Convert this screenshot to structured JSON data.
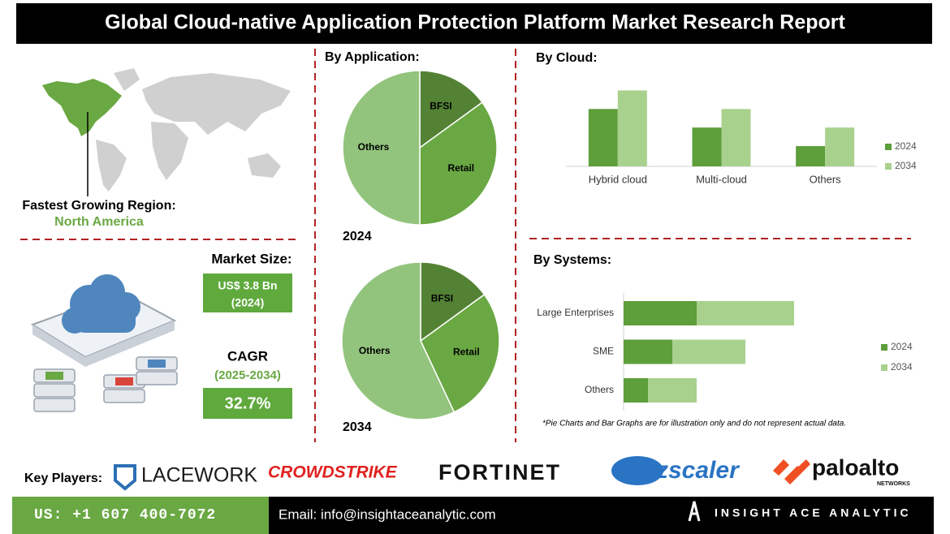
{
  "header": {
    "title": "Global Cloud-native Application Protection Platform Market Research Report"
  },
  "region": {
    "label": "Fastest Growing Region:",
    "value": "North America"
  },
  "market_size": {
    "label": "Market Size:",
    "value": "US$ 3.8 Bn",
    "year": "(2024)"
  },
  "cagr": {
    "label": "CAGR",
    "period": "(2025-2034)",
    "value": "32.7%"
  },
  "chart_data": [
    {
      "type": "pie",
      "title": "By Application:",
      "categories": [
        "BFSI",
        "Retail",
        "Others"
      ],
      "colors": [
        "#548235",
        "#6aa843",
        "#93c47d"
      ],
      "series": [
        {
          "name": "2024",
          "values": [
            15,
            35,
            50
          ]
        },
        {
          "name": "2034",
          "values": [
            15,
            28,
            57
          ]
        }
      ]
    },
    {
      "type": "bar",
      "title": "By  Cloud:",
      "categories": [
        "Hybrid cloud",
        "Multi-cloud",
        "Others"
      ],
      "series": [
        {
          "name": "2024",
          "color": "#5e9e3b",
          "values": [
            3.4,
            2.3,
            1.2
          ]
        },
        {
          "name": "2034",
          "color": "#a9d18e",
          "values": [
            4.5,
            3.4,
            2.3
          ]
        }
      ],
      "ylim": [
        0,
        5
      ]
    },
    {
      "type": "bar",
      "orientation": "horizontal",
      "stacked": true,
      "title": "By Systems:",
      "categories": [
        "Large Enterprises",
        "SME",
        "Others"
      ],
      "series": [
        {
          "name": "2024",
          "color": "#5e9e3b",
          "values": [
            3,
            2,
            1
          ]
        },
        {
          "name": "2034",
          "color": "#a9d18e",
          "values": [
            4,
            3,
            2
          ]
        }
      ],
      "xlim": [
        0,
        7
      ]
    }
  ],
  "note": "*Pie Charts and Bar Graphs are for illustration only and do not represent actual data.",
  "key_players": {
    "label": "Key Players:",
    "companies": [
      {
        "name": "LACEWORK"
      },
      {
        "name": "CROWDSTRIKE"
      },
      {
        "name": "FORTINET"
      },
      {
        "name": "zscaler"
      },
      {
        "name": "paloalto",
        "sub": "NETWORKS"
      }
    ]
  },
  "footer": {
    "phone": "US: +1 607 400-7072",
    "email": "Email: info@insightaceanalytic.com",
    "brand": "INSIGHT ACE ANALYTIC"
  }
}
